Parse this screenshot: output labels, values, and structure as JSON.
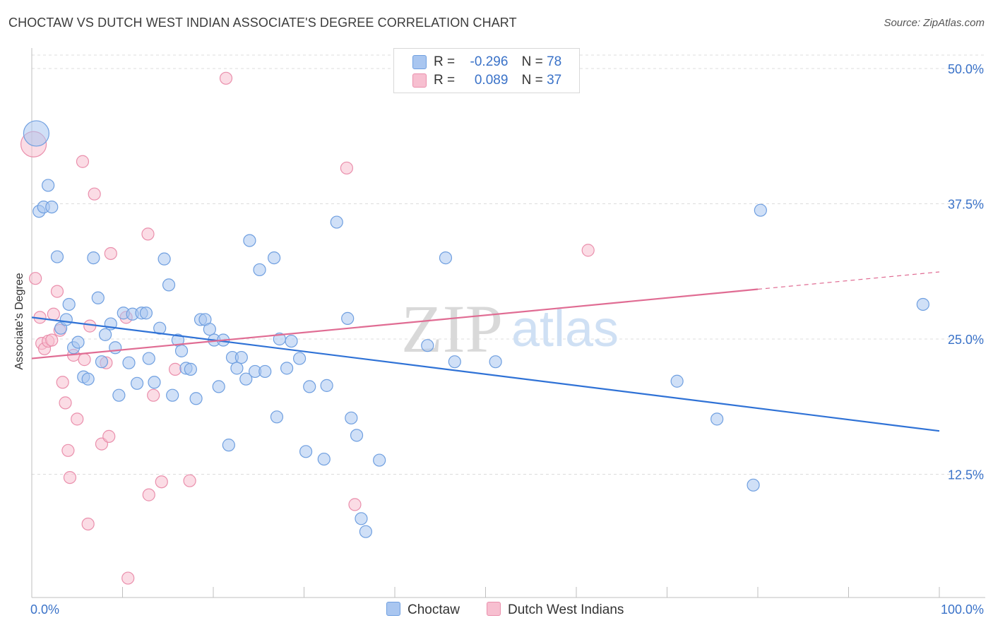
{
  "header": {
    "title": "CHOCTAW VS DUTCH WEST INDIAN ASSOCIATE'S DEGREE CORRELATION CHART",
    "source": "Source: ZipAtlas.com"
  },
  "watermark": {
    "zip": "ZIP",
    "atlas": "atlas"
  },
  "legend": {
    "choctaw": {
      "r_label": "R =",
      "r_value": "-0.296",
      "n_label": "N =",
      "n_value": "78"
    },
    "dutch": {
      "r_label": "R =",
      "r_value": "0.089",
      "n_label": "N =",
      "n_value": "37"
    }
  },
  "colors": {
    "choctaw_fill": "#a9c6f0",
    "choctaw_stroke": "#6f9fe0",
    "choctaw_line": "#2f72d6",
    "dutch_fill": "#f7bfd0",
    "dutch_stroke": "#ea8fac",
    "dutch_line": "#e06c93",
    "tick_label": "#3a72c8"
  },
  "chart_data": {
    "type": "scatter",
    "title": "CHOCTAW VS DUTCH WEST INDIAN ASSOCIATE'S DEGREE CORRELATION CHART",
    "xlabel": "",
    "ylabel": "Associate's Degree",
    "xlim": [
      0,
      100
    ],
    "ylim": [
      0,
      50
    ],
    "x_tick_labels": [
      "0.0%",
      "100.0%"
    ],
    "y_ticks": [
      12.5,
      25.0,
      37.5,
      50.0
    ],
    "y_tick_labels": [
      "12.5%",
      "25.0%",
      "37.5%",
      "50.0%"
    ],
    "grid": true,
    "series": [
      {
        "name": "Choctaw",
        "r": -0.296,
        "n": 78,
        "trend": {
          "x": [
            0,
            100
          ],
          "y": [
            27.0,
            16.5
          ]
        },
        "points": [
          {
            "x": 0.5,
            "y": 44.0,
            "big": true
          },
          {
            "x": 0.8,
            "y": 36.8
          },
          {
            "x": 1.3,
            "y": 37.2
          },
          {
            "x": 1.8,
            "y": 39.2
          },
          {
            "x": 2.2,
            "y": 37.2
          },
          {
            "x": 2.8,
            "y": 32.6
          },
          {
            "x": 3.2,
            "y": 26.0
          },
          {
            "x": 3.8,
            "y": 26.8
          },
          {
            "x": 4.1,
            "y": 28.2
          },
          {
            "x": 4.6,
            "y": 24.2
          },
          {
            "x": 5.1,
            "y": 24.7
          },
          {
            "x": 5.7,
            "y": 21.5
          },
          {
            "x": 6.2,
            "y": 21.3
          },
          {
            "x": 6.8,
            "y": 32.5
          },
          {
            "x": 7.3,
            "y": 28.8
          },
          {
            "x": 7.7,
            "y": 22.9
          },
          {
            "x": 8.1,
            "y": 25.4
          },
          {
            "x": 8.7,
            "y": 26.4
          },
          {
            "x": 9.2,
            "y": 24.2
          },
          {
            "x": 9.6,
            "y": 19.8
          },
          {
            "x": 10.1,
            "y": 27.4
          },
          {
            "x": 10.7,
            "y": 22.8
          },
          {
            "x": 11.1,
            "y": 27.3
          },
          {
            "x": 11.6,
            "y": 20.9
          },
          {
            "x": 12.1,
            "y": 27.4
          },
          {
            "x": 12.6,
            "y": 27.4
          },
          {
            "x": 12.9,
            "y": 23.2
          },
          {
            "x": 13.5,
            "y": 21.0
          },
          {
            "x": 14.1,
            "y": 26.0
          },
          {
            "x": 14.6,
            "y": 32.4
          },
          {
            "x": 15.1,
            "y": 30.0
          },
          {
            "x": 15.5,
            "y": 19.8
          },
          {
            "x": 16.1,
            "y": 24.9
          },
          {
            "x": 16.5,
            "y": 23.9
          },
          {
            "x": 17.0,
            "y": 22.3
          },
          {
            "x": 17.5,
            "y": 22.2
          },
          {
            "x": 18.1,
            "y": 19.5
          },
          {
            "x": 18.6,
            "y": 26.8
          },
          {
            "x": 19.1,
            "y": 26.8
          },
          {
            "x": 19.6,
            "y": 25.9
          },
          {
            "x": 20.1,
            "y": 24.9
          },
          {
            "x": 20.6,
            "y": 20.6
          },
          {
            "x": 21.1,
            "y": 24.9
          },
          {
            "x": 21.7,
            "y": 15.2
          },
          {
            "x": 22.1,
            "y": 23.3
          },
          {
            "x": 22.6,
            "y": 22.3
          },
          {
            "x": 23.1,
            "y": 23.3
          },
          {
            "x": 23.6,
            "y": 21.3
          },
          {
            "x": 24.0,
            "y": 34.1
          },
          {
            "x": 24.6,
            "y": 22.0
          },
          {
            "x": 25.1,
            "y": 31.4
          },
          {
            "x": 25.7,
            "y": 22.0
          },
          {
            "x": 26.7,
            "y": 32.5
          },
          {
            "x": 27.0,
            "y": 17.8
          },
          {
            "x": 27.3,
            "y": 25.0
          },
          {
            "x": 28.1,
            "y": 22.3
          },
          {
            "x": 28.6,
            "y": 24.8
          },
          {
            "x": 29.5,
            "y": 23.2
          },
          {
            "x": 30.2,
            "y": 14.6
          },
          {
            "x": 30.6,
            "y": 20.6
          },
          {
            "x": 32.2,
            "y": 13.9
          },
          {
            "x": 32.5,
            "y": 20.7
          },
          {
            "x": 33.6,
            "y": 35.8
          },
          {
            "x": 34.8,
            "y": 26.9
          },
          {
            "x": 35.2,
            "y": 17.7
          },
          {
            "x": 35.8,
            "y": 16.1
          },
          {
            "x": 36.3,
            "y": 8.4
          },
          {
            "x": 36.8,
            "y": 7.2
          },
          {
            "x": 38.3,
            "y": 13.8
          },
          {
            "x": 43.6,
            "y": 24.4
          },
          {
            "x": 45.6,
            "y": 32.5
          },
          {
            "x": 46.6,
            "y": 22.9
          },
          {
            "x": 51.1,
            "y": 22.9
          },
          {
            "x": 71.1,
            "y": 21.1
          },
          {
            "x": 75.5,
            "y": 17.6
          },
          {
            "x": 79.5,
            "y": 11.5
          },
          {
            "x": 80.3,
            "y": 36.9
          },
          {
            "x": 98.2,
            "y": 28.2
          }
        ]
      },
      {
        "name": "Dutch West Indians",
        "r": 0.089,
        "n": 37,
        "trend": {
          "x": [
            0,
            80
          ],
          "y": [
            23.2,
            29.6
          ]
        },
        "trend_dashed": {
          "x": [
            80,
            100
          ],
          "y": [
            29.6,
            31.2
          ]
        },
        "points": [
          {
            "x": 0.2,
            "y": 43.0,
            "big": true
          },
          {
            "x": 0.4,
            "y": 30.6
          },
          {
            "x": 0.9,
            "y": 27.0
          },
          {
            "x": 1.1,
            "y": 24.6
          },
          {
            "x": 1.4,
            "y": 24.1
          },
          {
            "x": 1.8,
            "y": 24.8
          },
          {
            "x": 2.2,
            "y": 24.9
          },
          {
            "x": 2.4,
            "y": 27.3
          },
          {
            "x": 2.8,
            "y": 29.4
          },
          {
            "x": 3.1,
            "y": 25.8
          },
          {
            "x": 3.4,
            "y": 21.0
          },
          {
            "x": 3.7,
            "y": 19.1
          },
          {
            "x": 4.0,
            "y": 14.7
          },
          {
            "x": 4.2,
            "y": 12.2
          },
          {
            "x": 4.6,
            "y": 23.5
          },
          {
            "x": 5.0,
            "y": 17.6
          },
          {
            "x": 5.6,
            "y": 41.4
          },
          {
            "x": 5.8,
            "y": 23.1
          },
          {
            "x": 6.2,
            "y": 7.9
          },
          {
            "x": 6.4,
            "y": 26.2
          },
          {
            "x": 6.9,
            "y": 38.4
          },
          {
            "x": 7.7,
            "y": 15.3
          },
          {
            "x": 8.2,
            "y": 22.8
          },
          {
            "x": 8.5,
            "y": 16.0
          },
          {
            "x": 8.7,
            "y": 32.9
          },
          {
            "x": 10.4,
            "y": 27.0
          },
          {
            "x": 10.6,
            "y": 2.9
          },
          {
            "x": 12.8,
            "y": 34.7
          },
          {
            "x": 12.9,
            "y": 10.6
          },
          {
            "x": 13.4,
            "y": 19.8
          },
          {
            "x": 14.3,
            "y": 11.8
          },
          {
            "x": 15.8,
            "y": 22.2
          },
          {
            "x": 17.4,
            "y": 11.9
          },
          {
            "x": 21.4,
            "y": 49.1
          },
          {
            "x": 34.7,
            "y": 40.8
          },
          {
            "x": 35.6,
            "y": 9.7
          },
          {
            "x": 61.3,
            "y": 33.2
          }
        ]
      }
    ]
  },
  "bottom_legend": {
    "choctaw": "Choctaw",
    "dutch": "Dutch West Indians"
  }
}
